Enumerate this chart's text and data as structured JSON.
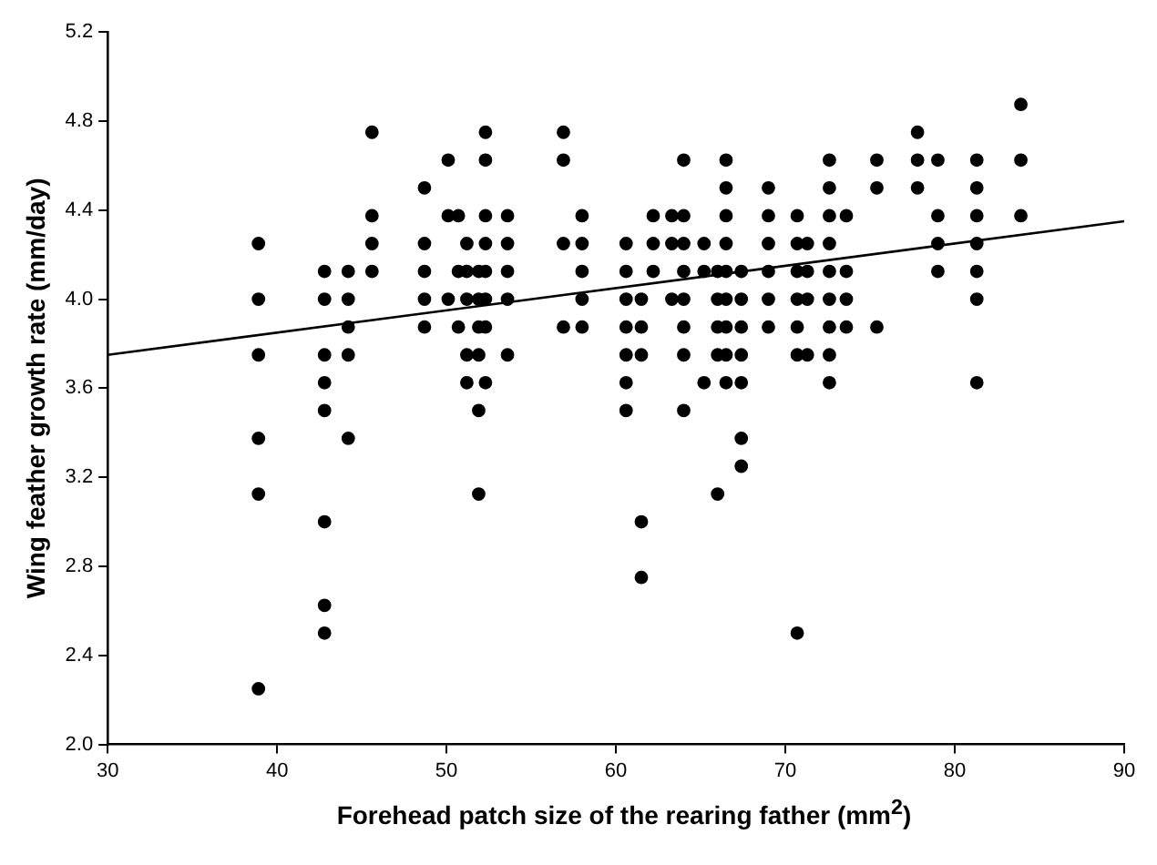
{
  "chart_data": {
    "type": "scatter",
    "xlabel": "Forehead patch size of the rearing father (mm$^{2}$)",
    "ylabel": "Wing feather growth rate (mm/day)",
    "xlim": [
      30,
      90
    ],
    "xticks": [
      30,
      40,
      50,
      60,
      70,
      80,
      90
    ],
    "ylim": [
      2.0,
      5.2
    ],
    "yticks": [
      {
        "value": 2.0,
        "label": "2.0"
      },
      {
        "value": 2.4,
        "label": "2.4"
      },
      {
        "value": 2.8,
        "label": "2.8"
      },
      {
        "value": 3.2,
        "label": "3.2"
      },
      {
        "value": 3.6,
        "label": "3.6"
      },
      {
        "value": 4.0,
        "label": "4.0"
      },
      {
        "value": 4.4,
        "label": "4.4"
      },
      {
        "value": 4.8,
        "label": "4.8"
      },
      {
        "value": 5.2,
        "label": "5.2"
      }
    ],
    "grid": false,
    "legend": false,
    "marker": "circle",
    "series": [
      {
        "color": "#000000",
        "x": [
          38.9,
          38.9,
          38.9,
          38.9,
          38.9,
          38.9,
          42.8,
          42.8,
          42.8,
          42.8,
          42.8,
          42.8,
          42.8,
          42.8,
          44.2,
          44.2,
          44.2,
          44.2,
          44.2,
          45.6,
          45.6,
          45.6,
          45.6,
          48.7,
          48.7,
          48.7,
          48.7,
          48.7,
          50.1,
          50.1,
          50.1,
          50.7,
          50.7,
          50.7,
          51.2,
          51.2,
          51.2,
          51.2,
          51.2,
          51.9,
          51.9,
          51.9,
          51.9,
          51.9,
          51.9,
          52.3,
          52.3,
          52.3,
          52.3,
          52.3,
          52.3,
          52.3,
          52.3,
          53.6,
          53.6,
          53.6,
          53.6,
          53.6,
          56.9,
          56.9,
          56.9,
          56.9,
          58.0,
          58.0,
          58.0,
          58.0,
          58.0,
          60.6,
          60.6,
          60.6,
          60.6,
          60.6,
          60.6,
          60.6,
          61.5,
          61.5,
          61.5,
          61.5,
          61.5,
          62.2,
          62.2,
          62.2,
          63.3,
          63.3,
          63.3,
          64.0,
          64.0,
          64.0,
          64.0,
          64.0,
          64.0,
          64.0,
          64.0,
          65.2,
          65.2,
          65.2,
          66.0,
          66.0,
          66.0,
          66.0,
          66.0,
          66.5,
          66.5,
          66.5,
          66.5,
          66.5,
          66.5,
          66.5,
          66.5,
          66.5,
          67.4,
          67.4,
          67.4,
          67.4,
          67.4,
          67.4,
          67.4,
          69.0,
          69.0,
          69.0,
          69.0,
          69.0,
          69.0,
          70.7,
          70.7,
          70.7,
          70.7,
          70.7,
          70.7,
          70.7,
          71.3,
          71.3,
          71.3,
          71.3,
          72.6,
          72.6,
          72.6,
          72.6,
          72.6,
          72.6,
          72.6,
          72.6,
          72.6,
          73.6,
          73.6,
          73.6,
          73.6,
          75.4,
          75.4,
          75.4,
          77.8,
          77.8,
          77.8,
          79.0,
          79.0,
          79.0,
          79.0,
          81.3,
          81.3,
          81.3,
          81.3,
          81.3,
          81.3,
          81.3,
          83.9,
          83.9,
          83.9
        ],
        "values": [
          4.25,
          4.0,
          3.75,
          3.375,
          3.125,
          2.25,
          4.125,
          4.0,
          3.75,
          3.625,
          3.5,
          3.0,
          2.625,
          2.5,
          4.125,
          4.0,
          3.875,
          3.75,
          3.375,
          4.75,
          4.375,
          4.25,
          4.125,
          4.5,
          4.25,
          4.125,
          4.0,
          3.875,
          4.625,
          4.375,
          4.0,
          4.375,
          4.125,
          3.875,
          4.25,
          4.125,
          4.0,
          3.75,
          3.625,
          4.125,
          4.0,
          3.875,
          3.75,
          3.5,
          3.125,
          4.75,
          4.625,
          4.375,
          4.25,
          4.125,
          4.0,
          3.875,
          3.625,
          4.375,
          4.25,
          4.125,
          4.0,
          3.75,
          4.75,
          4.625,
          4.25,
          3.875,
          4.375,
          4.25,
          4.125,
          4.0,
          3.875,
          4.25,
          4.125,
          4.0,
          3.875,
          3.75,
          3.625,
          3.5,
          4.0,
          3.875,
          3.75,
          3.0,
          2.75,
          4.375,
          4.25,
          4.125,
          4.375,
          4.25,
          4.0,
          4.625,
          4.375,
          4.25,
          4.125,
          4.0,
          3.875,
          3.75,
          3.5,
          4.25,
          4.125,
          3.625,
          4.125,
          4.0,
          3.875,
          3.75,
          3.125,
          4.625,
          4.5,
          4.375,
          4.25,
          4.125,
          4.0,
          3.875,
          3.75,
          3.625,
          4.125,
          4.0,
          3.875,
          3.75,
          3.625,
          3.375,
          3.25,
          4.5,
          4.375,
          4.25,
          4.125,
          4.0,
          3.875,
          4.375,
          4.25,
          4.125,
          4.0,
          3.875,
          3.75,
          2.5,
          4.25,
          4.125,
          4.0,
          3.75,
          4.625,
          4.5,
          4.375,
          4.25,
          4.125,
          4.0,
          3.875,
          3.75,
          3.625,
          4.375,
          4.125,
          4.0,
          3.875,
          4.625,
          4.5,
          3.875,
          4.75,
          4.625,
          4.5,
          4.625,
          4.375,
          4.25,
          4.125,
          4.625,
          4.5,
          4.375,
          4.25,
          4.125,
          4.0,
          3.625,
          4.875,
          4.625,
          4.375
        ]
      },
      {
        "type": "line",
        "color": "#000000",
        "marker": "none",
        "line_style": "solid",
        "x": [
          30,
          90
        ],
        "values": [
          3.75,
          4.35
        ]
      }
    ]
  }
}
